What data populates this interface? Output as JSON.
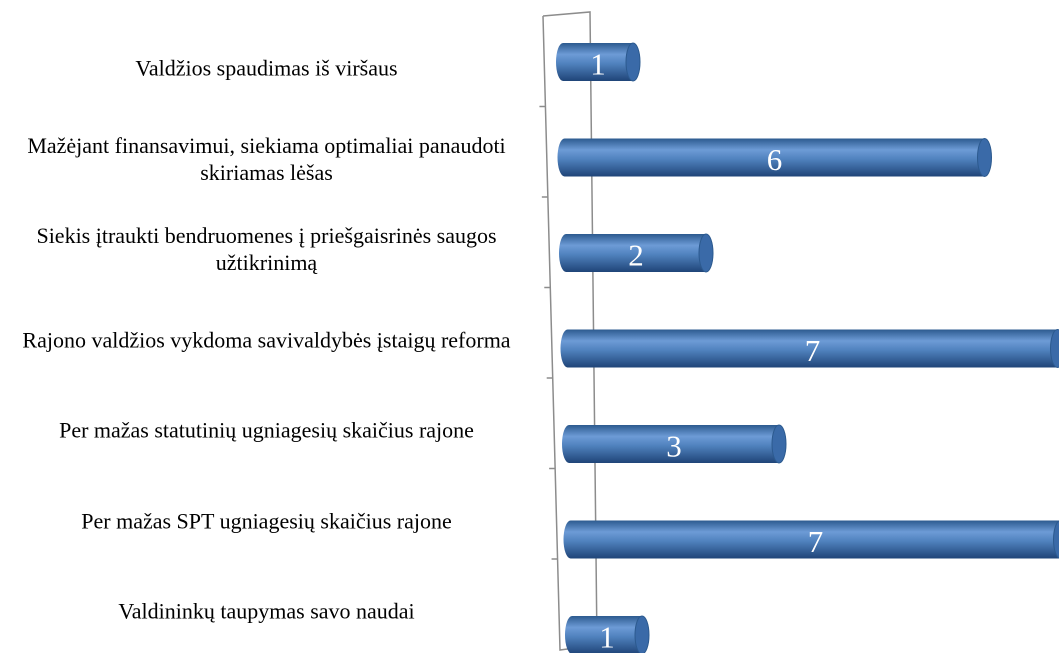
{
  "chart_data": {
    "type": "bar",
    "orientation": "horizontal",
    "categories": [
      "Valdžios spaudimas iš viršaus",
      "Mažėjant finansavimui, siekiama optimaliai panaudoti skiriamas lėšas",
      "Siekis įtraukti bendruomenes į priešgaisrinės saugos užtikrinimą",
      "Rajono valdžios vykdoma savivaldybės įstaigų reforma",
      "Per mažas statutinių ugniagesių skaičius rajone",
      "Per mažas SPT ugniagesių skaičius rajone",
      "Valdininkų taupymas savo naudai"
    ],
    "values": [
      1,
      6,
      2,
      7,
      3,
      7,
      1
    ],
    "color": "#4f81bd"
  }
}
